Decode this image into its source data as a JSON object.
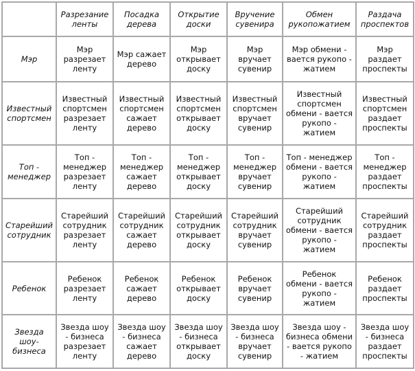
{
  "table": {
    "columns": [
      "",
      "Разрезание\nленты",
      "Посадка\nдерева",
      "Открытие\nдоски",
      "Вручение\nсувенира",
      "Обмен\nрукопожатием",
      "Раздача\nпроспектов"
    ],
    "rows": [
      {
        "header": "Мэр",
        "cells": [
          "Мэр\nразрезает\nленту",
          "Мэр сажает\nдерево",
          "Мэр\nоткрывает\nдоску",
          "Мэр\nвручает\nсувенир",
          "Мэр обмени -\nвается рукопо -\nжатием",
          "Мэр\nраздает\nпроспекты"
        ]
      },
      {
        "header": "Известный\nспортсмен",
        "cells": [
          "Известный\nспортсмен\nразрезает\nленту",
          "Известный\nспортсмен\nсажает\nдерево",
          "Известный\nспортсмен\nоткрывает\nдоску",
          "Известный\nспортсмен\nвручает\nсувенир",
          "Известный\nспортсмен\nобмени - вается\nрукопо -\nжатием",
          "Известный\nспортсмен\nраздает\nпроспекты"
        ]
      },
      {
        "header": "Топ -\nменеджер",
        "cells": [
          "Топ -\nменеджер\nразрезает\nленту",
          "Топ -\nменеджер\nсажает\nдерево",
          "Топ -\nменеджер\nоткрывает\nдоску",
          "Топ -\nменеджер\nвручает\nсувенир",
          "Топ - менеджер\nобмени - вается\nрукопо -\nжатием",
          "Топ -\nменеджер\nраздает\nпроспекты"
        ]
      },
      {
        "header": "Старейший\nсотрудник",
        "cells": [
          "Старейший\nсотрудник\nразрезает\nленту",
          "Старейший\nсотрудник\nсажает\nдерево",
          "Старейший\nсотрудник\nоткрывает\nдоску",
          "Старейший\nсотрудник\nвручает\nсувенир",
          "Старейший\nсотрудник\nобмени - вается\nрукопо -\nжатием",
          "Старейший\nсотрудник\nраздает\nпроспекты"
        ]
      },
      {
        "header": "Ребенок",
        "cells": [
          "Ребенок\nразрезает\nленту",
          "Ребенок\nсажает\nдерево",
          "Ребенок\nоткрывает\nдоску",
          "Ребенок\nвручает\nсувенир",
          "Ребенок\nобмени - вается\nрукопо -\nжатием",
          "Ребенок\nраздает\nпроспекты"
        ]
      },
      {
        "header": "Звезда\nшоу-\nбизнеса",
        "cells": [
          "Звезда шоу\n- бизнеса\nразрезает\nленту",
          "Звезда шоу\n- бизнеса\nсажает\nдерево",
          "Звезда шоу\n- бизнеса\nоткрывает\nдоску",
          "Звезда шоу\n- бизнеса\nвручает\nсувенир",
          "Звезда шоу -\nбизнеса обмени\n- вается рукопо\n- жатием",
          "Звезда шоу\n- бизнеса\nраздает\nпроспекты"
        ]
      }
    ]
  }
}
